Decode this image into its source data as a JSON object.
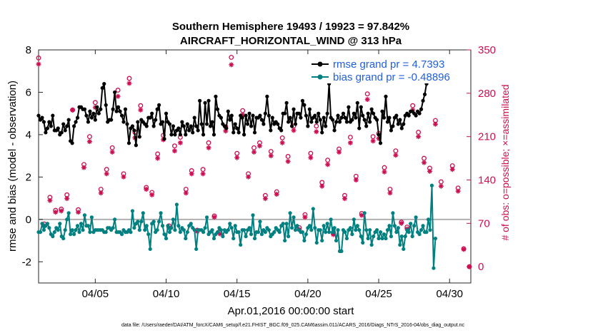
{
  "chart_data": {
    "type": "line",
    "title": "Southern Hemisphere 19493 / 19923 = 97.842%",
    "subtitle": "AIRCRAFT_HORIZONTAL_WIND @ 313 hPa",
    "xlabel": "Apr.01,2016 00:00:00 start",
    "ylabel": "rmse and bias (model - observation)",
    "ylabel_right": "# of obs: o=possible; ×=assimilated",
    "xlim": [
      1.0,
      31.5
    ],
    "ylim": [
      -3,
      8
    ],
    "ylim_right": [
      -26.25,
      350
    ],
    "xticks": [
      5,
      10,
      15,
      20,
      25,
      30
    ],
    "xtick_labels": [
      "04/05",
      "04/10",
      "04/15",
      "04/20",
      "04/25",
      "04/30"
    ],
    "yticks": [
      -2,
      0,
      2,
      4,
      6,
      8
    ],
    "ytick_labels": [
      "-2",
      "0",
      "2",
      "4",
      "6",
      "8"
    ],
    "yticks_right": [
      0,
      70,
      140,
      210,
      280,
      350
    ],
    "ytick_labels_right": [
      "0",
      "70",
      "140",
      "210",
      "280",
      "350"
    ],
    "legend_position": "top-right",
    "footnote": "data file: /Users/raeder/DAI/ATM_forcX/CAM6_setup/f.e21.FHIST_BGC.f09_025.CAM6assim.011/ACARS_2016/Diags_NTrS_2016-04/obs_diag_output.nc",
    "colors": {
      "rmse": "#000000",
      "bias": "#008080",
      "counts": "#cc0e52",
      "zero_line": "#b0b0b0",
      "legend_text": "#1f5fe0"
    },
    "series": [
      {
        "name": "rmse grand pr = 4.7393",
        "axis": "left",
        "values": [
          4.9,
          4.7,
          4.8,
          4.6,
          4.1,
          4.3,
          4.6,
          4.4,
          4.9,
          4.2,
          4.2,
          4.3,
          4.0,
          4.1,
          4.5,
          4.2,
          4.4,
          4.7,
          3.7,
          3.6,
          4.4,
          4.6,
          4.8,
          5.3,
          5.3,
          5.2,
          5.2,
          4.9,
          4.6,
          5.1,
          4.8,
          5.0,
          4.7,
          5.3,
          5.0,
          5.2,
          6.2,
          6.4,
          5.4,
          4.6,
          4.7,
          4.7,
          5.2,
          6.0,
          5.1,
          5.3,
          5.1,
          4.9,
          4.6,
          5.2,
          4.5,
          3.6,
          4.3,
          4.4,
          4.2,
          3.5,
          4.6,
          3.9,
          4.7,
          4.6,
          4.5,
          4.4,
          4.8,
          4.8,
          5.0,
          4.4,
          4.7,
          5.2,
          5.4,
          4.5,
          4.6,
          3.8,
          5.0,
          4.6,
          4.5,
          4.0,
          4.4,
          4.0,
          4.2,
          4.3,
          4.0,
          4.6,
          4.4,
          4.0,
          4.5,
          4.2,
          4.4,
          4.1,
          4.8,
          4.4,
          4.2,
          5.6,
          4.5,
          4.0,
          5.5,
          4.5,
          5.6,
          4.4,
          4.6,
          4.0,
          5.8,
          5.2,
          4.9,
          4.8,
          4.5,
          4.4,
          4.3,
          5.1,
          4.7,
          4.9,
          4.1,
          4.5,
          4.3,
          4.1,
          4.9,
          4.8,
          4.0,
          4.9,
          4.5,
          5.0,
          4.4,
          4.9,
          4.1,
          4.8,
          4.8,
          4.9,
          4.7,
          4.5,
          5.0,
          5.8,
          4.9,
          4.2,
          4.8,
          4.5,
          4.6,
          4.5,
          4.3,
          4.2,
          5.0,
          5.0,
          5.5,
          4.6,
          4.8,
          4.4,
          5.2,
          4.5,
          5.0,
          5.0,
          4.8,
          5.6,
          5.4,
          4.9,
          4.4,
          5.2,
          4.6,
          4.8,
          4.9,
          4.6,
          5.0,
          4.7,
          4.1,
          4.8,
          4.4,
          5.0,
          6.4,
          4.8,
          4.7,
          4.2,
          4.6,
          4.9,
          4.6,
          4.8,
          5.0,
          4.8,
          4.6,
          5.3,
          4.6,
          4.7,
          5.0,
          4.8,
          5.5,
          4.3,
          5.3,
          4.9,
          4.7,
          4.4,
          5.0,
          4.6,
          5.2,
          5.0,
          4.8,
          4.7,
          4.0,
          3.6,
          5.1,
          4.8,
          5.8,
          4.6,
          4.8,
          4.2,
          4.4,
          4.8,
          4.9,
          4.5,
          4.7,
          4.3,
          4.5,
          4.9,
          5.0,
          4.9,
          5.1,
          5.1,
          5.0,
          4.9,
          5.1,
          5.0,
          5.2,
          5.6,
          5.9,
          6.4
        ]
      },
      {
        "name": "bias grand pr = -0.48896",
        "axis": "left",
        "values": [
          -0.6,
          -0.6,
          -0.2,
          -0.5,
          -0.3,
          -0.2,
          -0.4,
          -0.7,
          -0.8,
          -0.6,
          -0.4,
          -0.5,
          -0.2,
          -0.8,
          -0.9,
          -0.5,
          0.0,
          0.3,
          -0.7,
          -0.5,
          -0.7,
          -0.5,
          -0.3,
          -0.6,
          -0.2,
          -0.5,
          0.2,
          -0.3,
          -0.3,
          -0.6,
          0.1,
          -0.6,
          -0.5,
          -0.5,
          -0.5,
          -0.5,
          -0.5,
          -0.6,
          -0.6,
          -0.4,
          -0.4,
          -0.5,
          -0.4,
          0.0,
          -0.6,
          -0.6,
          -0.6,
          -0.7,
          -0.5,
          -0.6,
          -0.6,
          -0.5,
          -0.6,
          0.4,
          -0.4,
          -0.2,
          -0.1,
          -0.5,
          -0.1,
          0.3,
          -0.5,
          -0.3,
          -0.7,
          -1.4,
          -0.2,
          -0.1,
          -0.6,
          -0.5,
          -0.1,
          0.3,
          -0.3,
          -0.7,
          -0.9,
          -0.3,
          -0.6,
          -0.4,
          0.0,
          -0.5,
          0.7,
          -0.3,
          -0.6,
          -0.4,
          -0.5,
          -0.9,
          -0.6,
          -0.3,
          -0.2,
          -0.4,
          -0.5,
          -1.4,
          -0.5,
          -0.5,
          -0.5,
          -0.6,
          -0.4,
          0.1,
          -0.7,
          -0.6,
          -0.5,
          -0.9,
          -0.7,
          -0.6,
          -0.4,
          -0.5,
          -0.8,
          -0.5,
          -0.6,
          -0.5,
          -0.2,
          -0.4,
          -0.9,
          -0.3,
          -0.6,
          -0.6,
          -1.2,
          -0.5,
          -0.5,
          -0.8,
          -0.5,
          -0.4,
          -0.7,
          0.2,
          -0.9,
          -0.6,
          -0.6,
          -0.1,
          -0.7,
          -0.5,
          -0.6,
          -0.4,
          -0.5,
          -0.8,
          -0.7,
          -0.6,
          -0.4,
          -0.5,
          -0.6,
          -0.3,
          -0.2,
          -1.0,
          -0.2,
          -0.8,
          0.3,
          -0.4,
          0.1,
          -0.5,
          -0.3,
          -0.5,
          -0.6,
          -0.6,
          -1.0,
          -0.7,
          -0.4,
          -0.3,
          -0.5,
          0.5,
          -0.4,
          -1.1,
          -0.5,
          -0.5,
          -1.0,
          -0.3,
          -0.6,
          -0.2,
          -0.6,
          0.0,
          -0.6,
          -0.4,
          -1.0,
          -0.5,
          -1.5,
          -1.5,
          -0.5,
          -0.6,
          -0.9,
          -0.5,
          -0.4,
          -0.7,
          0.0,
          -0.5,
          -0.3,
          -0.5,
          -0.8,
          -1.1,
          0.3,
          -0.5,
          -0.9,
          -0.5,
          -1.2,
          -0.8,
          -0.6,
          -0.5,
          -0.9,
          -0.6,
          -0.9,
          -0.7,
          -0.9,
          -0.5,
          -0.3,
          -0.8,
          0.3,
          -0.3,
          -0.6,
          -0.4,
          -1.2,
          -0.8,
          -1.4,
          -0.8,
          -0.5,
          -0.6,
          -0.2,
          -0.8,
          -0.3,
          0.1,
          -0.6,
          -0.7,
          -0.5,
          -0.3,
          -0.6,
          -0.6,
          0.0,
          -0.5,
          1.6,
          -2.3,
          -0.9
        ]
      }
    ],
    "x_start": 1.0,
    "x_step": 0.125,
    "counts_possible": {
      "axis": "right",
      "x": [
        1.0,
        1.4,
        1.8,
        2.2,
        2.6,
        3.0,
        3.4,
        3.8,
        4.2,
        4.6,
        5.0,
        5.4,
        5.8,
        6.2,
        6.6,
        7.0,
        7.4,
        7.8,
        8.2,
        8.6,
        9.0,
        9.4,
        9.8,
        10.2,
        10.6,
        11.0,
        11.4,
        11.8,
        12.2,
        12.6,
        13.0,
        13.4,
        13.8,
        14.2,
        14.6,
        15.0,
        15.4,
        15.8,
        16.2,
        16.6,
        17.0,
        17.4,
        17.8,
        18.2,
        18.6,
        19.0,
        19.4,
        19.8,
        20.2,
        20.6,
        21.0,
        21.4,
        21.8,
        22.2,
        22.6,
        23.0,
        23.4,
        23.8,
        24.2,
        24.6,
        25.0,
        25.4,
        25.8,
        26.2,
        26.6,
        27.0,
        27.4,
        27.8,
        28.2,
        28.6,
        29.0,
        29.4,
        29.8,
        30.2,
        30.6,
        31.0,
        31.4
      ],
      "values": [
        337,
        69,
        112,
        91,
        93,
        116,
        253,
        92,
        165,
        210,
        265,
        125,
        157,
        192,
        285,
        150,
        304,
        217,
        260,
        128,
        120,
        182,
        212,
        66,
        195,
        209,
        125,
        155,
        59,
        157,
        200,
        82,
        55,
        226,
        338,
        183,
        252,
        150,
        192,
        200,
        115,
        186,
        121,
        208,
        178,
        227,
        63,
        84,
        183,
        227,
        136,
        172,
        54,
        190,
        115,
        209,
        146,
        86,
        279,
        210,
        215,
        160,
        125,
        187,
        72,
        64,
        260,
        217,
        175,
        159,
        236,
        137,
        305,
        163,
        127,
        29,
        0
      ]
    },
    "counts_assimilated": {
      "axis": "right",
      "x": [
        1.0,
        1.4,
        1.8,
        2.2,
        2.6,
        3.0,
        3.4,
        3.8,
        4.2,
        4.6,
        5.0,
        5.4,
        5.8,
        6.2,
        6.6,
        7.0,
        7.4,
        7.8,
        8.2,
        8.6,
        9.0,
        9.4,
        9.8,
        10.2,
        10.6,
        11.0,
        11.4,
        11.8,
        12.2,
        12.6,
        13.0,
        13.4,
        13.8,
        14.2,
        14.6,
        15.0,
        15.4,
        15.8,
        16.2,
        16.6,
        17.0,
        17.4,
        17.8,
        18.2,
        18.6,
        19.0,
        19.4,
        19.8,
        20.2,
        20.6,
        21.0,
        21.4,
        21.8,
        22.2,
        22.6,
        23.0,
        23.4,
        23.8,
        24.2,
        24.6,
        25.0,
        25.4,
        25.8,
        26.2,
        26.6,
        27.0,
        27.4,
        27.8,
        28.2,
        28.6,
        29.0,
        29.4,
        29.8,
        30.2,
        30.6,
        31.0,
        31.4
      ],
      "values": [
        327,
        66,
        107,
        88,
        90,
        110,
        253,
        88,
        160,
        202,
        257,
        119,
        150,
        185,
        275,
        145,
        296,
        208,
        253,
        125,
        116,
        175,
        205,
        63,
        187,
        200,
        119,
        150,
        57,
        150,
        192,
        80,
        53,
        219,
        326,
        176,
        245,
        145,
        185,
        195,
        110,
        179,
        117,
        200,
        170,
        220,
        60,
        80,
        176,
        218,
        130,
        165,
        52,
        185,
        110,
        200,
        140,
        83,
        270,
        203,
        207,
        153,
        119,
        180,
        70,
        61,
        253,
        210,
        168,
        154,
        230,
        130,
        300,
        157,
        122,
        28,
        0
      ]
    }
  }
}
